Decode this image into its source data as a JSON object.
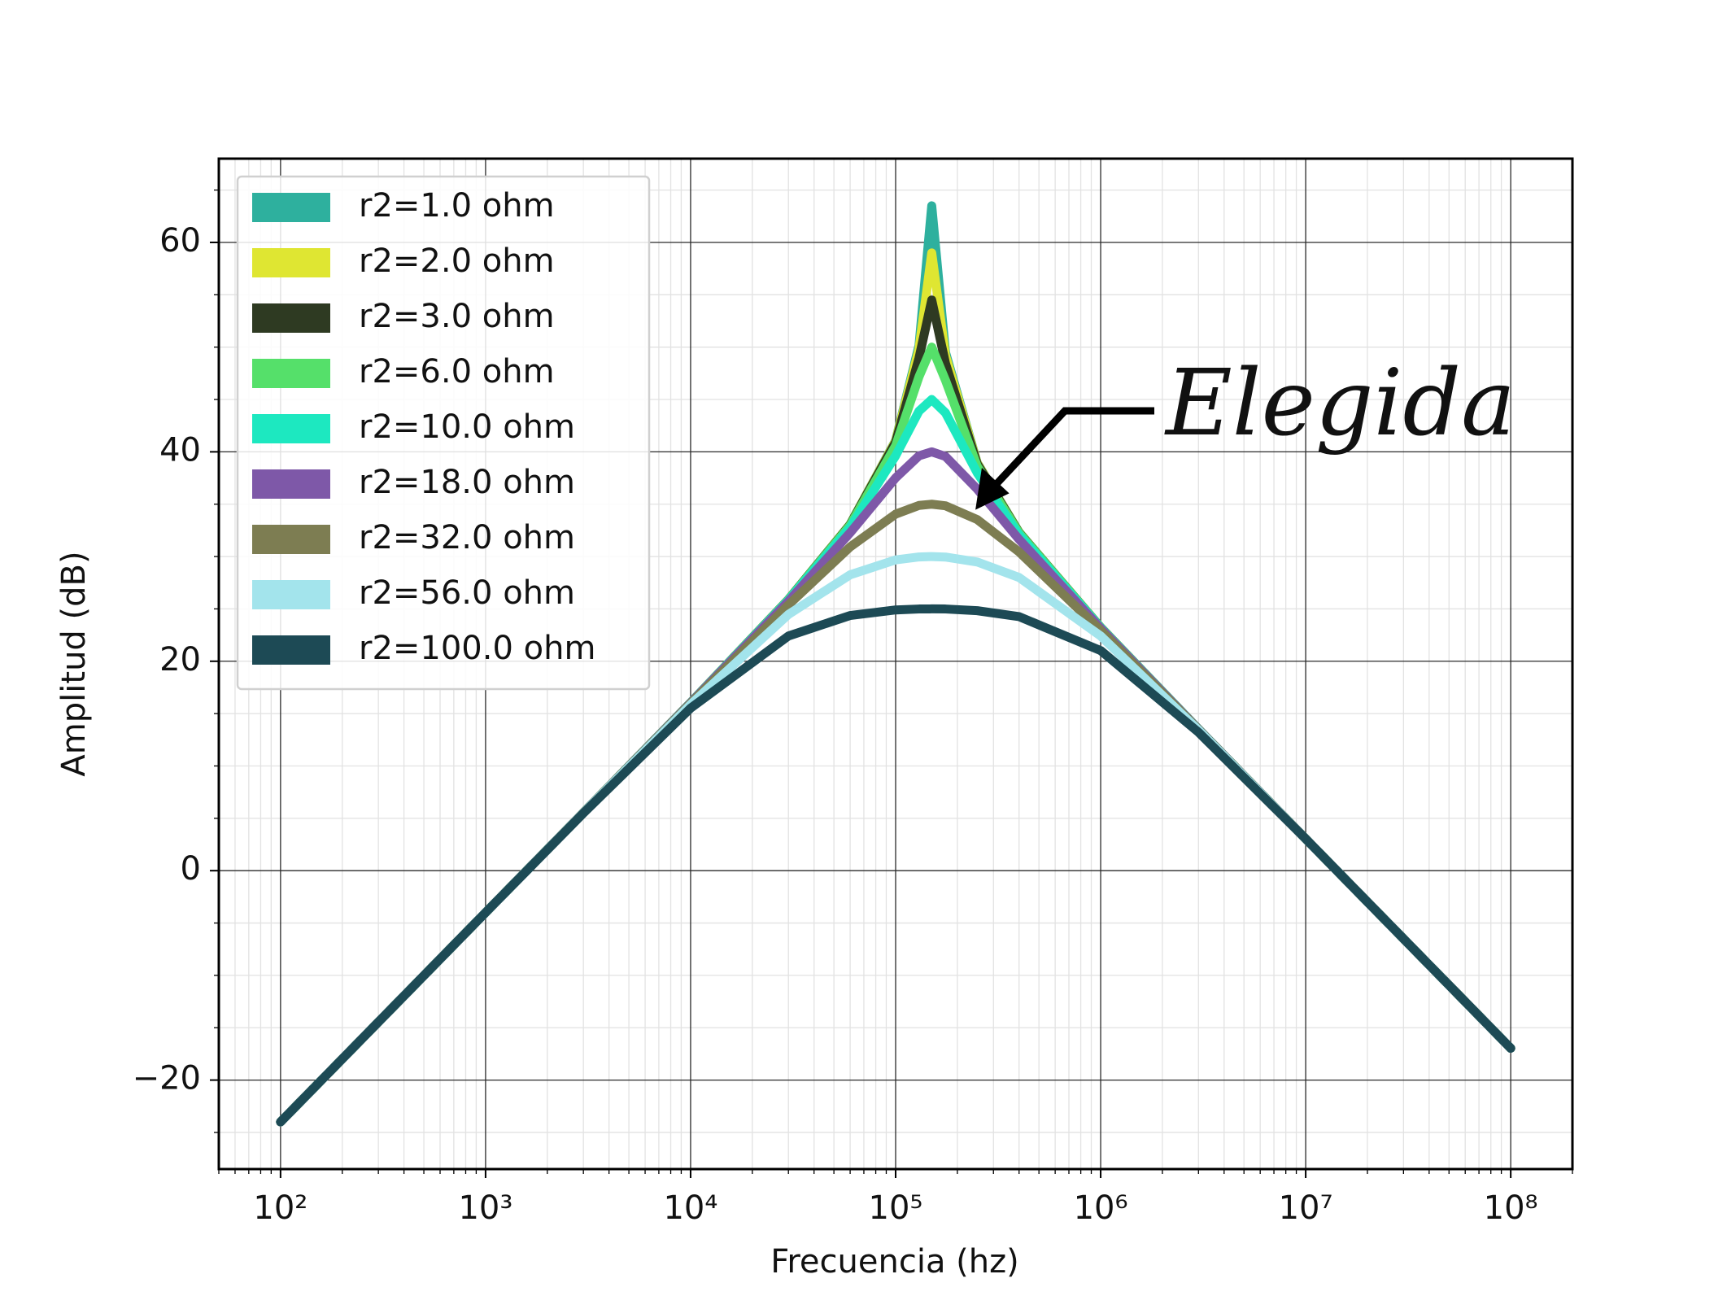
{
  "chart_data": {
    "type": "line",
    "xlabel": "Frecuencia (hz)",
    "ylabel": "Amplitud (dB)",
    "annotation": "Elegida",
    "xscale": "log",
    "grid": true,
    "minor_grid": true,
    "legend": "upper left",
    "xlim": [
      50,
      200000000
    ],
    "ylim": [
      -28.5,
      68
    ],
    "xticks": [
      {
        "value": 100,
        "label": "10²"
      },
      {
        "value": 1000,
        "label": "10³"
      },
      {
        "value": 10000,
        "label": "10⁴"
      },
      {
        "value": 100000,
        "label": "10⁵"
      },
      {
        "value": 1000000,
        "label": "10⁶"
      },
      {
        "value": 10000000,
        "label": "10⁷"
      },
      {
        "value": 100000000,
        "label": "10⁸"
      }
    ],
    "yticks": [
      {
        "value": -20,
        "label": "−20"
      },
      0,
      20,
      40,
      60
    ],
    "x": [
      100,
      1000,
      3000,
      10000,
      30000,
      60000,
      100000,
      130000,
      150000,
      175000,
      250000,
      400000,
      1000000,
      3000000,
      10000000,
      100000000
    ],
    "series": [
      {
        "name": "r2=1.0 ohm",
        "color": "#2eb09e",
        "values": [
          -24,
          -4,
          5.54,
          16.05,
          25.9,
          33.08,
          41.09,
          50.16,
          63.5,
          49.52,
          38.95,
          32.33,
          23.24,
          13.52,
          3.04,
          -16.96
        ]
      },
      {
        "name": "r2=2.0 ohm",
        "color": "#dfe632",
        "values": [
          -24,
          -4,
          5.54,
          16.04,
          25.9,
          33.07,
          41.04,
          49.8,
          59,
          49.21,
          38.92,
          32.31,
          23.24,
          13.52,
          3.04,
          -16.96
        ]
      },
      {
        "name": "r2=3.0 ohm",
        "color": "#2e3a22",
        "values": [
          -24,
          -4,
          5.54,
          16.04,
          25.9,
          33.05,
          40.92,
          48.95,
          54.5,
          48.45,
          38.84,
          32.29,
          23.24,
          13.52,
          3.04,
          -16.96
        ]
      },
      {
        "name": "r2=6.0 ohm",
        "color": "#55e06a",
        "values": [
          -24,
          -4,
          5.54,
          16.04,
          25.88,
          32.99,
          40.58,
          47.17,
          50,
          46.84,
          38.63,
          32.25,
          23.23,
          13.52,
          3.04,
          -16.96
        ]
      },
      {
        "name": "r2=10.0 ohm",
        "color": "#1de8c0",
        "values": [
          -24,
          -4,
          5.54,
          16.03,
          25.84,
          32.8,
          39.62,
          43.89,
          45,
          43.73,
          37.99,
          32.09,
          23.2,
          13.52,
          3.04,
          -16.96
        ]
      },
      {
        "name": "r2=18.0 ohm",
        "color": "#7e58a8",
        "values": [
          -24,
          -4,
          5.54,
          16.02,
          25.73,
          32.27,
          37.51,
          39.62,
          40,
          39.56,
          36.44,
          31.64,
          23.14,
          13.51,
          3.04,
          -16.96
        ]
      },
      {
        "name": "r2=32.0 ohm",
        "color": "#7d7d52",
        "values": [
          -24,
          -4,
          5.54,
          15.97,
          25.38,
          30.92,
          34.05,
          34.88,
          35,
          34.85,
          33.53,
          30.44,
          22.95,
          13.48,
          3.04,
          -16.96
        ]
      },
      {
        "name": "r2=56.0 ohm",
        "color": "#a3e4ec",
        "values": [
          -24,
          -4,
          5.52,
          15.87,
          24.47,
          28.26,
          29.68,
          29.96,
          30,
          29.95,
          29.48,
          28,
          22.41,
          13.43,
          3.03,
          -16.96
        ]
      },
      {
        "name": "r2=100.0 ohm",
        "color": "#1d4a55",
        "values": [
          -24,
          -4,
          5.49,
          15.52,
          22.41,
          24.37,
          24.9,
          24.99,
          25,
          24.99,
          24.83,
          24.26,
          21.02,
          13.22,
          3.04,
          -16.96
        ]
      }
    ]
  }
}
